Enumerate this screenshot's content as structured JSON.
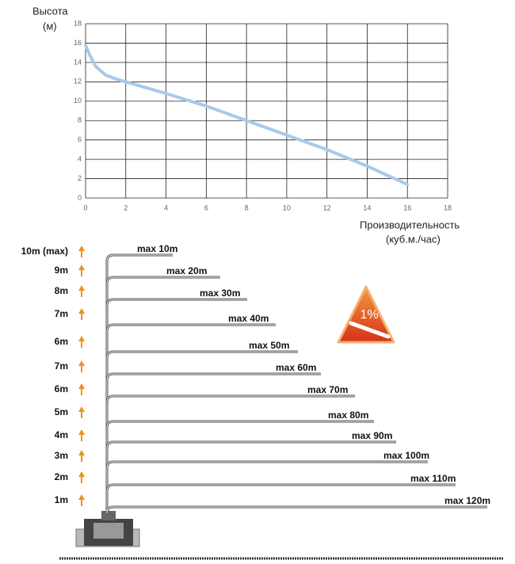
{
  "chart_data": {
    "type": "line",
    "ylabel": [
      "Высота",
      "(м)"
    ],
    "xlabel": [
      "Производительность",
      "(куб.м./час)"
    ],
    "x": [
      0,
      0.2,
      0.5,
      1,
      1.5,
      2,
      4,
      6,
      8,
      10,
      12,
      14,
      16
    ],
    "series": [
      {
        "color": "#a9c9ea",
        "values": [
          15.8,
          14.8,
          13.6,
          12.7,
          12.3,
          12,
          10.8,
          9.5,
          8,
          6.5,
          5,
          3.3,
          1.4
        ]
      }
    ],
    "xlim": [
      0,
      18
    ],
    "ylim": [
      0,
      18
    ],
    "xticks": [
      0,
      2,
      4,
      6,
      8,
      10,
      12,
      14,
      16,
      18
    ],
    "yticks": [
      0,
      2,
      4,
      6,
      8,
      10,
      12,
      14,
      16,
      18
    ],
    "grid": true
  },
  "diagram": {
    "warning_label": "1%",
    "rows": [
      {
        "height": "10m (max)",
        "reach": "max 10m"
      },
      {
        "height": "9m",
        "reach": "max 20m"
      },
      {
        "height": "8m",
        "reach": "max 30m"
      },
      {
        "height": "7m",
        "reach": "max 40m"
      },
      {
        "height": "6m",
        "reach": "max 50m"
      },
      {
        "height": "7m",
        "reach": "max 60m"
      },
      {
        "height": "6m",
        "reach": "max 70m"
      },
      {
        "height": "5m",
        "reach": "max 80m"
      },
      {
        "height": "4m",
        "reach": "max 90m"
      },
      {
        "height": "3m",
        "reach": "max 100m"
      },
      {
        "height": "2m",
        "reach": "max 110m"
      },
      {
        "height": "1m",
        "reach": "max 120m"
      }
    ]
  }
}
